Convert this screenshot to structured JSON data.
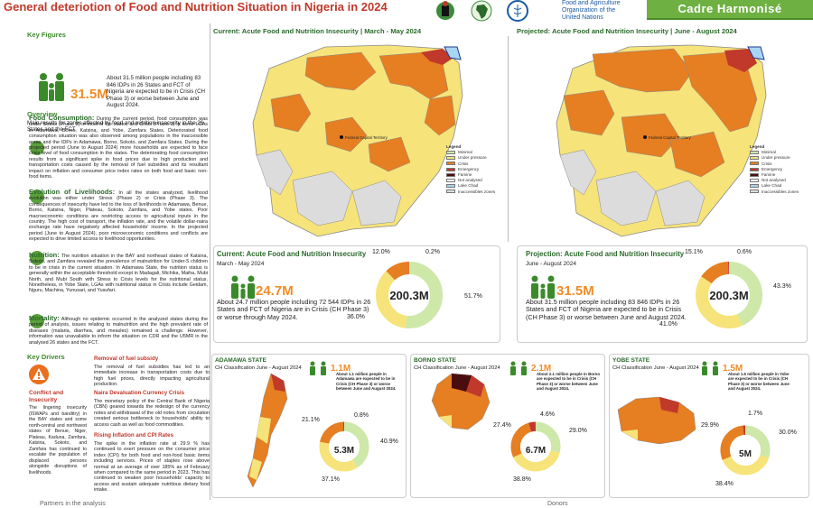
{
  "header": {
    "title": "General deteriotion of Food and Nutrition Situation in Nigeria in 2024",
    "fao": "Food and Agriculture Organization of the United Nations",
    "banner": "Cadre Harmonisé"
  },
  "key_figures": {
    "title": "Key Figures",
    "value": "31.5M",
    "text": "About 31.5 million people including 83 846 IDPs in 26 States and FCT of Nigeria are expected to be in Crisis (CH Phase 3) or worse between June and August 2024."
  },
  "overview": {
    "title": "Overview",
    "intro": "Main results for zones affected by food and nutrition insecurity in the 26 States and the FCT.",
    "food_consumption_lead": "Food Consumption:",
    "food_consumption": "During the current period, food consumption was under Stress (Phase 2) in most of the states, and Crisis (Phase 3) in some LGAs in Adamawa, Borno, Katsina, and Yobe, Zamfara States. Deteriorated food consumption situation was also observed among populations in the inaccessible areas and the IDPs in Adamawa, Borno, Sokoto, and Zamfara States. During the projected period (June to August 2024) more households are expected to face crisis level of food consumption in the states. The deteriorating food consumption results from a significant spike in food prices due to high production and transportation costs caused by the removal of fuel subsidies and its resultant impact on inflation and consumer price index rates on both food and basic non-food items.",
    "livelihoods_lead": "Evolution of Livelihoods:",
    "livelihoods": "In all the states analyzed, livelihood evolution was either under Stress (Phase 2) or Crisis (Phase 3). The consequences of insecurity have led to the loss of livelihoods in Adamawa, Benue, Borno, Katsina, Niger, Plateau, Sokoto, Zamfara, and Yobe states. Poor macroeconomic conditions are restricting access to agricultural inputs in the country. The high cost of transport, the inflation rate, and the volatile dollar-naira exchange rate have negatively affected households' income. In the projected period (June to August 2024), poor microeconomic conditions and conflicts are expected to drive limited access to livelihood opportunities.",
    "nutrition_lead": "Nutrition:",
    "nutrition": "The nutrition situation in the BAY and northeast states of Katsina, Sokoto, and Zamfara revealed the prevalence of malnutrition for Under-5 children to be in crisis in the current situation. In Adamawa State, the nutrition status is generally within the acceptable threshold except in Madagali, Michika, Maiha, Mubi North, and Mubi South with Stress to Crisis levels for the nutritional status. Nonetheless, in Yobe State, LGAs with nutritional status in Crisis include Geidam, Nguru, Machina, Yunusari, and Yusufari.",
    "mortality_lead": "Mortality:",
    "mortality": "Although no epidemic occurred in the analyzed states during the period of analysis, issues relating to malnutrition and the high prevalent rate of diseases (malaria, diarrhea, and measles) remained a challenge. However, information was unavailable to inform the situation on CDR and the U5MR in the analysed 26 states and the FCT."
  },
  "key_drivers": {
    "title": "Key Drivers",
    "conflict_title": "Conflict and Insecurity",
    "conflict_text": "The lingering insecurity (ISWAPs and banditry) in the BAY states and some north-central and northwest states of Benue, Niger, Plateau, Kaduna, Zamfara, Katsina, Sokoto, and Zamfara has continued to escalate the population of displaced persons alongside disruptions of livelihoods.",
    "d1_title": "Removal of fuel subsidy",
    "d1_text": "The removal of fuel subsidies has led to an immediate increase in transportation costs due to high fuel prices, directly impacting agricultural production.",
    "d2_title": "Naira Devaluation Currency Crisis",
    "d2_text": "The monetary policy of the Central Bank of Nigeria (CBN) geared towards the redesign of the currency notes and withdrawal of the old notes from circulation created serious bottleneck to households' ability to access cash as well as food commodities.",
    "d3_title": "Rising Inflation and CPI Rates",
    "d3_text": "The spike in the inflation rate at 29.9 % has continued to exert pressure on the consumer price index (CPI) for both food and non-food basic items including services. Prices of staples rose above normal at an average of over 185% as of February when compared to the same period in 2023. This has continued to weaken poor households' capacity to access and sustain adequate nutritious dietary food intake."
  },
  "maps": {
    "current_title": "Current: Acute Food and Nutrition Insecurity | March - May 2024",
    "projected_title": "Projected: Acute Food and Nutrition Insecurity | June - August 2024",
    "legend_title": "Legend",
    "legend": [
      "Minimal",
      "Under pressure",
      "Crisis",
      "Emergency",
      "Famine",
      "Not analysed",
      "Lake Chad",
      "Inaccessibles zones"
    ],
    "legend_colors": [
      "#cde8a8",
      "#f6e37a",
      "#e67e22",
      "#c0392b",
      "#4a0d0d",
      "#ffffff",
      "#a8d5f2",
      "#dcdcdc"
    ],
    "city_label": "Federal Capital Territory"
  },
  "current": {
    "title": "Current: Acute Food and Nutrition Insecurity",
    "period": "March - May 2024",
    "value": "24.7M",
    "text": "About 24.7 million people including 72 544 IDPs in 26 States and FCT of Nigeria are in Crisis (CH Phase 3) or worse through May 2024.",
    "total": "200.3M",
    "pcts": [
      "12.0%",
      "0.2%",
      "51.7%",
      "36.0%"
    ]
  },
  "projection": {
    "title": "Projection: Acute Food and Nutrition Insecurity",
    "period": "June - August 2024",
    "value": "31.5M",
    "text": "About 31.5 million people including 83 846 IDPs in 26 States and FCT of Nigeria are expected to be in Crisis (CH Phase 3) or worse between June and August 2024.",
    "total": "200.3M",
    "pcts": [
      "15.1%",
      "0.6%",
      "43.3%",
      "41.0%"
    ]
  },
  "states": [
    {
      "name": "ADAMAWA STATE",
      "sub": "CH Classification June - August 2024",
      "value": "1.1M",
      "text": "About 1.1 million people in Adamawa are expected to be in Crisis (CH Phase 3) or worse between June and August 2024.",
      "total": "5.3M",
      "pcts": [
        "21.1%",
        "0.8%",
        "40.9%",
        "37.1%"
      ]
    },
    {
      "name": "BORNO STATE",
      "sub": "CH Classification June - August 2024",
      "value": "2.1M",
      "text": "About 2.1 million people in Borno are expected to be in Crisis (CH Phase 3) or worse between June and August 2024.",
      "total": "6.7M",
      "pcts": [
        "27.4%",
        "4.6%",
        "29.0%",
        "38.8%"
      ]
    },
    {
      "name": "YOBE STATE",
      "sub": "CH Classification June - August 2024",
      "value": "1.5M",
      "text": "About 1.5 million people in Yobe are expected to be in Crisis (CH Phase 3) or worse between June and August 2024.",
      "total": "5M",
      "pcts": [
        "29.9%",
        "1.7%",
        "30.0%",
        "38.4%"
      ]
    }
  ],
  "donut_fractions": {
    "current": [
      0.517,
      0.36,
      0.12,
      0.002
    ],
    "projection": [
      0.433,
      0.41,
      0.151,
      0.006
    ],
    "adamawa": [
      0.409,
      0.371,
      0.211,
      0.008
    ],
    "borno": [
      0.29,
      0.388,
      0.274,
      0.046
    ],
    "yobe": [
      0.3,
      0.384,
      0.299,
      0.017
    ]
  },
  "footer": {
    "partners": "Partners in the analysis",
    "donors": "Donors"
  }
}
